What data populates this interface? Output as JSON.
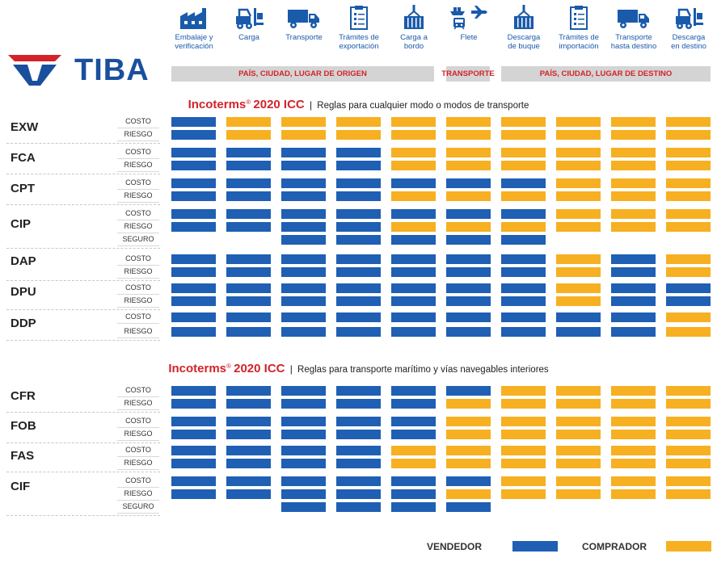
{
  "brand": {
    "name": "TIBA"
  },
  "colors": {
    "seller": "#1f5fb4",
    "buyer": "#f6b021",
    "accent": "#d2232a",
    "icon": "#1a5aaa"
  },
  "columns": [
    {
      "label": [
        "Embalaje y",
        "verificación"
      ],
      "icon": "factory-icon"
    },
    {
      "label": [
        "Carga"
      ],
      "icon": "forklift-icon"
    },
    {
      "label": [
        "Transporte"
      ],
      "icon": "truck-icon"
    },
    {
      "label": [
        "Trámites de",
        "exportación"
      ],
      "icon": "document-icon"
    },
    {
      "label": [
        "Carga a",
        "bordo"
      ],
      "icon": "crane-container-icon"
    },
    {
      "label": [
        "Flete"
      ],
      "icon": "ship-plane-train-icon"
    },
    {
      "label": [
        "Descarga",
        "de buque"
      ],
      "icon": "crane-container-icon"
    },
    {
      "label": [
        "Trámites de",
        "importación"
      ],
      "icon": "document-icon"
    },
    {
      "label": [
        "Transporte",
        "hasta destino"
      ],
      "icon": "truck-icon"
    },
    {
      "label": [
        "Descarga",
        "en destino"
      ],
      "icon": "forklift-icon"
    }
  ],
  "bands": {
    "origin": "PAÍS, CIUDAD, LUGAR DE ORIGEN",
    "transport": "TRANSPORTE",
    "destination": "PAÍS, CIUDAD, LUGAR DE DESTINO"
  },
  "sections": [
    {
      "title": "Incoterms",
      "reg": "®",
      "year": "2020 ICC",
      "subtitle": "Reglas para cualquier modo o modos de transporte",
      "terms": [
        {
          "code": "EXW",
          "rows": [
            {
              "label": "COSTO",
              "cells": "SBBBBBBBBB"
            },
            {
              "label": "RIESGO",
              "cells": "SBBBBBBBBB"
            }
          ]
        },
        {
          "code": "FCA",
          "rows": [
            {
              "label": "COSTO",
              "cells": "SSSSBBBBBB"
            },
            {
              "label": "RIESGO",
              "cells": "SSSSBBBBBB"
            }
          ]
        },
        {
          "code": "CPT",
          "rows": [
            {
              "label": "COSTO",
              "cells": "SSSSSSSBBB"
            },
            {
              "label": "RIESGO",
              "cells": "SSSSBBBBBB"
            }
          ]
        },
        {
          "code": "CIP",
          "rows": [
            {
              "label": "COSTO",
              "cells": "SSSSSSSBBB"
            },
            {
              "label": "RIESGO",
              "cells": "SSSSBBBBBB"
            },
            {
              "label": "SEGURO",
              "cells": "--SSSSS---"
            }
          ]
        },
        {
          "code": "DAP",
          "rows": [
            {
              "label": "COSTO",
              "cells": "SSSSSSSBSB"
            },
            {
              "label": "RIESGO",
              "cells": "SSSSSSSBSB"
            }
          ]
        },
        {
          "code": "DPU",
          "rows": [
            {
              "label": "COSTO",
              "cells": "SSSSSSSBSS"
            },
            {
              "label": "RIESGO",
              "cells": "SSSSSSSBSS"
            }
          ]
        },
        {
          "code": "DDP",
          "rows": [
            {
              "label": "COSTO",
              "cells": "SSSSSSSSSB"
            },
            {
              "label": "RIESGO",
              "cells": "SSSSSSSSSB"
            }
          ]
        }
      ]
    },
    {
      "title": "Incoterms",
      "reg": "®",
      "year": "2020 ICC",
      "subtitle": "Reglas para transporte marítimo y vías navegables interiores",
      "terms": [
        {
          "code": "CFR",
          "rows": [
            {
              "label": "COSTO",
              "cells": "SSSSSSBBBB"
            },
            {
              "label": "RIESGO",
              "cells": "SSSSSBBBBB"
            }
          ]
        },
        {
          "code": "FOB",
          "rows": [
            {
              "label": "COSTO",
              "cells": "SSSSSBBBBB"
            },
            {
              "label": "RIESGO",
              "cells": "SSSSSBBBBB"
            }
          ]
        },
        {
          "code": "FAS",
          "rows": [
            {
              "label": "COSTO",
              "cells": "SSSSBBBBBB"
            },
            {
              "label": "RIESGO",
              "cells": "SSSSBBBBBB"
            }
          ]
        },
        {
          "code": "CIF",
          "rows": [
            {
              "label": "COSTO",
              "cells": "SSSSSSBBBB"
            },
            {
              "label": "RIESGO",
              "cells": "SSSSSBBBBB"
            },
            {
              "label": "SEGURO",
              "cells": "--SSSS----"
            }
          ]
        }
      ]
    }
  ],
  "legend": {
    "seller": "VENDEDOR",
    "buyer": "COMPRADOR"
  }
}
